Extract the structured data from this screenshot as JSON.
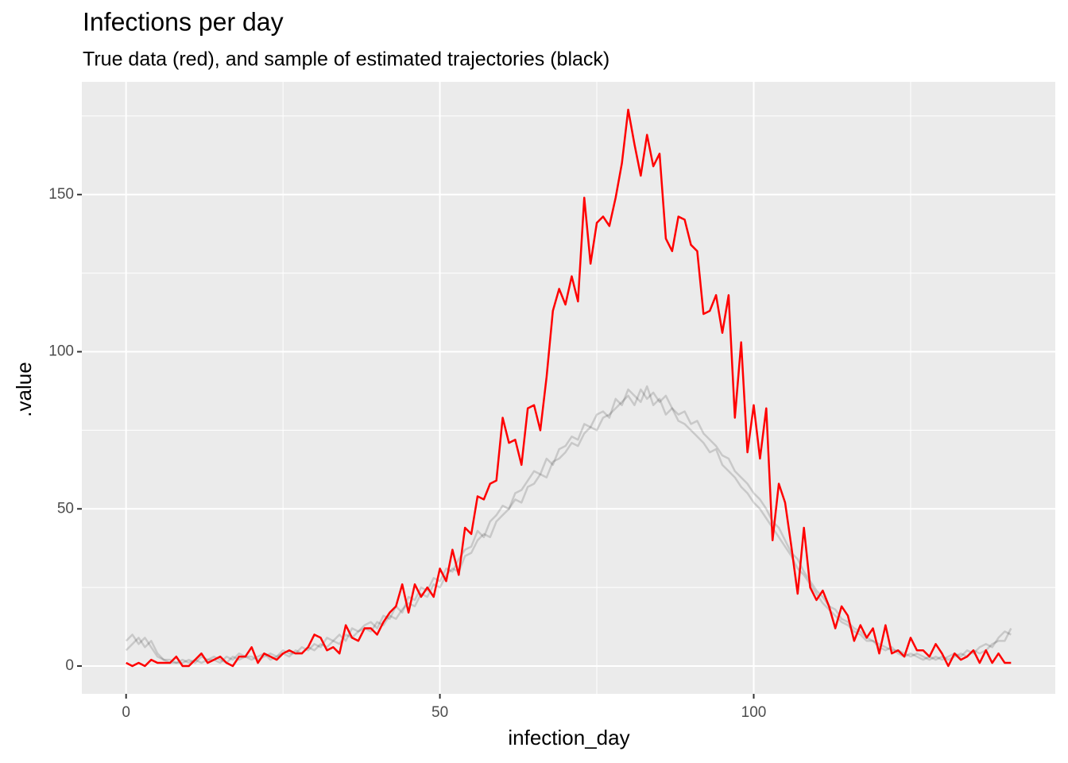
{
  "chart_data": {
    "type": "line",
    "title": "Infections per day",
    "subtitle": "True data (red), and sample of estimated trajectories (black)",
    "x_label": "infection_day",
    "y_label": ".value",
    "x": [
      0,
      1,
      2,
      3,
      4,
      5,
      6,
      7,
      8,
      9,
      10,
      11,
      12,
      13,
      14,
      15,
      16,
      17,
      18,
      19,
      20,
      21,
      22,
      23,
      24,
      25,
      26,
      27,
      28,
      29,
      30,
      31,
      32,
      33,
      34,
      35,
      36,
      37,
      38,
      39,
      40,
      41,
      42,
      43,
      44,
      45,
      46,
      47,
      48,
      49,
      50,
      51,
      52,
      53,
      54,
      55,
      56,
      57,
      58,
      59,
      60,
      61,
      62,
      63,
      64,
      65,
      66,
      67,
      68,
      69,
      70,
      71,
      72,
      73,
      74,
      75,
      76,
      77,
      78,
      79,
      80,
      81,
      82,
      83,
      84,
      85,
      86,
      87,
      88,
      89,
      90,
      91,
      92,
      93,
      94,
      95,
      96,
      97,
      98,
      99,
      100,
      101,
      102,
      103,
      104,
      105,
      106,
      107,
      108,
      109,
      110,
      111,
      112,
      113,
      114,
      115,
      116,
      117,
      118,
      119,
      120,
      121,
      122,
      123,
      124,
      125,
      126,
      127,
      128,
      129,
      130,
      131,
      132,
      133,
      134,
      135,
      136,
      137,
      138,
      139,
      140,
      141
    ],
    "series": [
      {
        "color": "#000000",
        "opacity": 0.15,
        "values": [
          8,
          10,
          7,
          9,
          6,
          3,
          2,
          1,
          1,
          2,
          1,
          2,
          1,
          2,
          3,
          2,
          1,
          3,
          2,
          3,
          2,
          3,
          4,
          2,
          3,
          4,
          3,
          5,
          4,
          6,
          5,
          7,
          6,
          8,
          7,
          10,
          9,
          11,
          12,
          11,
          14,
          13,
          16,
          15,
          18,
          20,
          19,
          23,
          22,
          26,
          25,
          29,
          31,
          30,
          35,
          36,
          40,
          42,
          41,
          46,
          48,
          50,
          53,
          52,
          57,
          58,
          61,
          60,
          65,
          66,
          68,
          71,
          70,
          74,
          76,
          75,
          79,
          80,
          82,
          84,
          86,
          83,
          88,
          85,
          87,
          84,
          86,
          82,
          80,
          81,
          77,
          78,
          74,
          72,
          70,
          67,
          66,
          62,
          60,
          58,
          55,
          53,
          50,
          46,
          44,
          40,
          36,
          34,
          30,
          27,
          24,
          22,
          19,
          18,
          15,
          14,
          12,
          11,
          9,
          8,
          7,
          6,
          5,
          5,
          4,
          3,
          4,
          3,
          2,
          3,
          2,
          3,
          4,
          3,
          5,
          4,
          6,
          7,
          6,
          9,
          11,
          10
        ]
      },
      {
        "color": "#000000",
        "opacity": 0.15,
        "values": [
          5,
          7,
          9,
          6,
          8,
          4,
          2,
          2,
          1,
          1,
          2,
          1,
          3,
          2,
          2,
          1,
          3,
          2,
          4,
          3,
          3,
          2,
          3,
          4,
          3,
          5,
          4,
          4,
          6,
          5,
          7,
          6,
          9,
          8,
          10,
          8,
          12,
          11,
          13,
          14,
          12,
          16,
          15,
          19,
          17,
          22,
          21,
          25,
          24,
          28,
          27,
          31,
          30,
          34,
          37,
          38,
          43,
          41,
          46,
          48,
          51,
          50,
          55,
          56,
          59,
          62,
          61,
          66,
          64,
          69,
          70,
          73,
          72,
          77,
          76,
          80,
          81,
          79,
          85,
          83,
          88,
          86,
          84,
          89,
          83,
          85,
          80,
          82,
          78,
          77,
          75,
          73,
          71,
          68,
          69,
          64,
          62,
          60,
          57,
          55,
          52,
          50,
          47,
          44,
          41,
          38,
          35,
          31,
          29,
          26,
          23,
          20,
          18,
          16,
          14,
          13,
          11,
          10,
          8,
          8,
          6,
          5,
          6,
          4,
          3,
          4,
          3,
          2,
          3,
          2,
          3,
          2,
          3,
          4,
          3,
          5,
          4,
          5,
          7,
          8,
          8,
          12
        ]
      },
      {
        "color": "#ff0000",
        "opacity": 1,
        "values": [
          1,
          0,
          1,
          0,
          2,
          1,
          1,
          1,
          3,
          0,
          0,
          2,
          4,
          1,
          2,
          3,
          1,
          0,
          3,
          3,
          6,
          1,
          4,
          3,
          2,
          4,
          5,
          4,
          4,
          6,
          10,
          9,
          5,
          6,
          4,
          13,
          9,
          8,
          12,
          12,
          10,
          14,
          17,
          19,
          26,
          17,
          26,
          22,
          25,
          22,
          31,
          27,
          37,
          29,
          44,
          42,
          54,
          53,
          58,
          59,
          79,
          71,
          72,
          64,
          82,
          83,
          75,
          92,
          113,
          120,
          115,
          124,
          116,
          149,
          128,
          141,
          143,
          140,
          149,
          160,
          177,
          166,
          156,
          169,
          159,
          163,
          136,
          132,
          143,
          142,
          134,
          132,
          112,
          113,
          118,
          106,
          118,
          79,
          103,
          68,
          83,
          66,
          82,
          40,
          58,
          52,
          38,
          23,
          44,
          25,
          21,
          24,
          19,
          12,
          19,
          16,
          8,
          13,
          9,
          12,
          4,
          13,
          4,
          5,
          3,
          9,
          5,
          5,
          3,
          7,
          4,
          0,
          4,
          2,
          3,
          5,
          1,
          5,
          1,
          4,
          1,
          1
        ]
      }
    ],
    "xlim": [
      -7.05,
      148.05
    ],
    "xticks": [
      0,
      50,
      100
    ],
    "xminor": [
      25,
      75,
      125
    ],
    "ylim": [
      -8.85,
      185.85
    ],
    "yticks": [
      0,
      50,
      100,
      150
    ],
    "yminor": [
      25,
      75,
      125,
      175
    ],
    "grid": true
  }
}
